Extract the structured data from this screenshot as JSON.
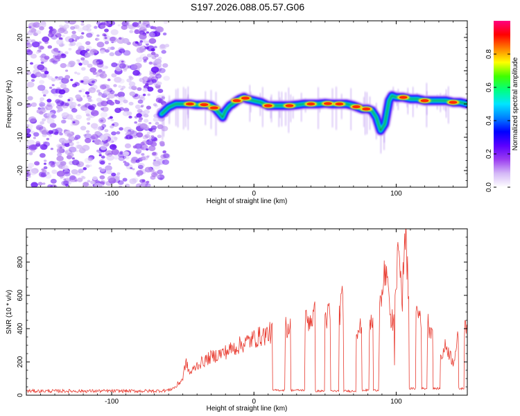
{
  "title": "S197.2026.088.05.57.G06",
  "chart_data": [
    {
      "type": "heatmap",
      "xlabel": "Height of straight line (km)",
      "ylabel": "Frequency (Hz)",
      "xlim": [
        -160,
        150
      ],
      "ylim": [
        -25,
        25
      ],
      "xticks": [
        -100,
        0,
        100
      ],
      "yticks": [
        -20,
        -10,
        0,
        10,
        20
      ],
      "colorbar": {
        "label": "Normalized spectral amplitude",
        "range": [
          0.0,
          1.0
        ],
        "ticks": [
          "0.0",
          "0.2",
          "0.4",
          "0.6",
          "0.8"
        ],
        "colormap": [
          "#ffffff",
          "#d4b8f7",
          "#9b3cf0",
          "#5a00ff",
          "#0000ff",
          "#0080ff",
          "#00e5ff",
          "#00ff80",
          "#40ff00",
          "#ffff00",
          "#ff8000",
          "#ff0000",
          "#ff0080"
        ]
      },
      "noise_region_x": [
        -160,
        -65
      ],
      "ridge": {
        "x": [
          -65,
          -60,
          -55,
          -50,
          -45,
          -40,
          -35,
          -30,
          -27,
          -22,
          -20,
          -17,
          -15,
          -12,
          -10,
          -7,
          -5,
          0,
          5,
          10,
          15,
          20,
          25,
          30,
          35,
          40,
          45,
          50,
          55,
          60,
          65,
          70,
          73,
          76,
          80,
          83,
          86,
          89,
          92,
          95,
          97,
          100,
          105,
          110,
          115,
          120,
          125,
          130,
          135,
          140,
          145,
          150
        ],
        "y": [
          -3,
          -1,
          0,
          0,
          0,
          -0.3,
          -0.2,
          -0.5,
          -1.5,
          -4,
          -2,
          -0.5,
          0,
          1,
          1.5,
          2,
          1.5,
          1,
          0.5,
          -0.5,
          -0.5,
          -0.5,
          -0.5,
          -0.3,
          0,
          0,
          0,
          0.2,
          0,
          0,
          0,
          -0.5,
          -1,
          -1.5,
          -1.5,
          -2,
          -4,
          -8,
          -6,
          1,
          2.5,
          2,
          2,
          1.5,
          1.5,
          1,
          1,
          1,
          1,
          0.5,
          0.5,
          0
        ]
      },
      "hotspots_x": [
        -45,
        -35,
        -28,
        -12,
        -6,
        10,
        25,
        40,
        52,
        60,
        72,
        79,
        105,
        120,
        140
      ]
    },
    {
      "type": "line",
      "xlabel": "Height of straight line (km)",
      "ylabel": "SNR (10 * v/v)",
      "xlim": [
        -160,
        150
      ],
      "ylim": [
        0,
        1000
      ],
      "xticks": [
        -100,
        0,
        100
      ],
      "yticks": [
        0,
        200,
        400,
        600,
        800
      ],
      "series": [
        {
          "name": "SNR",
          "color": "#e83a2f",
          "envelope": {
            "x": [
              -160,
              -70,
              -60,
              -55,
              -50,
              -48,
              -45,
              -40,
              -30,
              -20,
              -10,
              0,
              10,
              20,
              30,
              35,
              40,
              45,
              50,
              60,
              62,
              65,
              70,
              75,
              80,
              85,
              88,
              90,
              92,
              95,
              98,
              100,
              102,
              104,
              106,
              110,
              115,
              120,
              125,
              130,
              135,
              140,
              145,
              150
            ],
            "y": [
              25,
              25,
              30,
              50,
              100,
              200,
              130,
              180,
              230,
              260,
              300,
              340,
              370,
              400,
              420,
              440,
              460,
              500,
              470,
              500,
              560,
              470,
              420,
              400,
              420,
              440,
              500,
              580,
              750,
              550,
              400,
              600,
              1000,
              500,
              980,
              520,
              500,
              450,
              400,
              200,
              300,
              200,
              400,
              460
            ]
          },
          "dropouts": [
            {
              "x0": 13,
              "x1": 22,
              "y": 30
            },
            {
              "x0": 26,
              "x1": 36,
              "y": 30
            },
            {
              "x0": 43,
              "x1": 50,
              "y": 25
            },
            {
              "x0": 54,
              "x1": 60,
              "y": 25
            },
            {
              "x0": 63,
              "x1": 72,
              "y": 25
            },
            {
              "x0": 76,
              "x1": 81,
              "y": 30
            },
            {
              "x0": 84,
              "x1": 88,
              "y": 30
            },
            {
              "x0": 109,
              "x1": 114,
              "y": 40
            },
            {
              "x0": 118,
              "x1": 122,
              "y": 40
            },
            {
              "x0": 126,
              "x1": 131,
              "y": 40
            },
            {
              "x0": 144,
              "x1": 148,
              "y": 40
            }
          ]
        }
      ]
    }
  ]
}
